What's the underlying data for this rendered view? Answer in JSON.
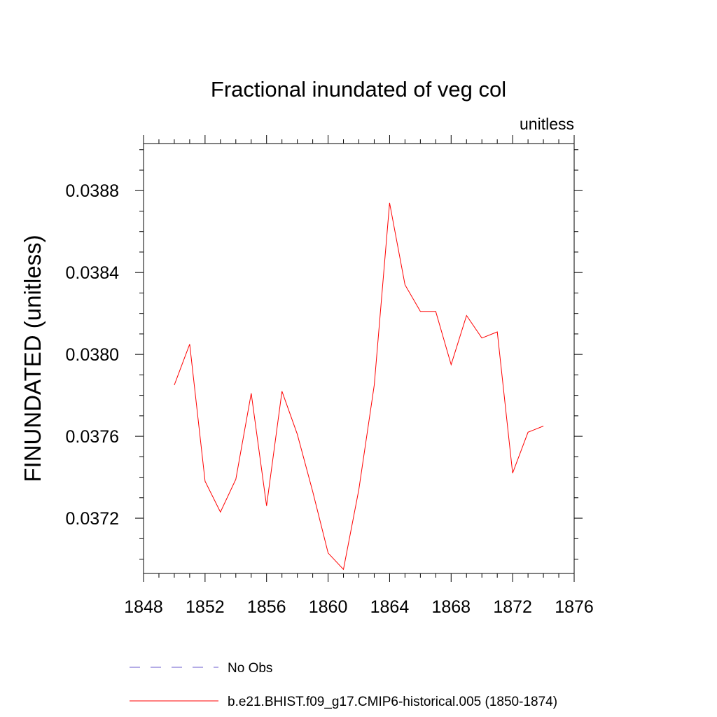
{
  "chart_data": {
    "type": "line",
    "title": "Fractional inundated of veg col",
    "units_label": "unitless",
    "ylabel": "FINUNDATED  (unitless)",
    "xlabel": "",
    "xlim": [
      1848,
      1876
    ],
    "ylim": [
      0.03693,
      0.03903
    ],
    "x_ticks": [
      1848,
      1852,
      1856,
      1860,
      1864,
      1868,
      1872,
      1876
    ],
    "x_tick_labels": [
      "1848",
      "1852",
      "1856",
      "1860",
      "1864",
      "1868",
      "1872",
      "1876"
    ],
    "y_ticks": [
      0.0372,
      0.0376,
      0.038,
      0.0384,
      0.0388
    ],
    "y_tick_labels": [
      "0.0372",
      "0.0376",
      "0.0380",
      "0.0384",
      "0.0388"
    ],
    "series": [
      {
        "name": "b.e21.BHIST.f09_g17.CMIP6-historical.005 (1850-1874)",
        "color": "#ff0000",
        "style": "solid",
        "x": [
          1850,
          1851,
          1852,
          1853,
          1854,
          1855,
          1856,
          1857,
          1858,
          1859,
          1860,
          1861,
          1862,
          1863,
          1864,
          1865,
          1866,
          1867,
          1868,
          1869,
          1870,
          1871,
          1872,
          1873,
          1874
        ],
        "y": [
          0.03785,
          0.03805,
          0.03738,
          0.03723,
          0.03739,
          0.03781,
          0.03726,
          0.03782,
          0.03761,
          0.03733,
          0.03703,
          0.03695,
          0.03734,
          0.03785,
          0.03874,
          0.03834,
          0.03821,
          0.03821,
          0.03795,
          0.03819,
          0.03808,
          0.03811,
          0.03742,
          0.03762,
          0.03765
        ]
      }
    ],
    "legend": [
      {
        "label": "No Obs",
        "color": "#6a5acd",
        "style": "dashed"
      },
      {
        "label": "b.e21.BHIST.f09_g17.CMIP6-historical.005 (1850-1874)",
        "color": "#ff0000",
        "style": "solid"
      }
    ],
    "legend_position": "bottom"
  }
}
